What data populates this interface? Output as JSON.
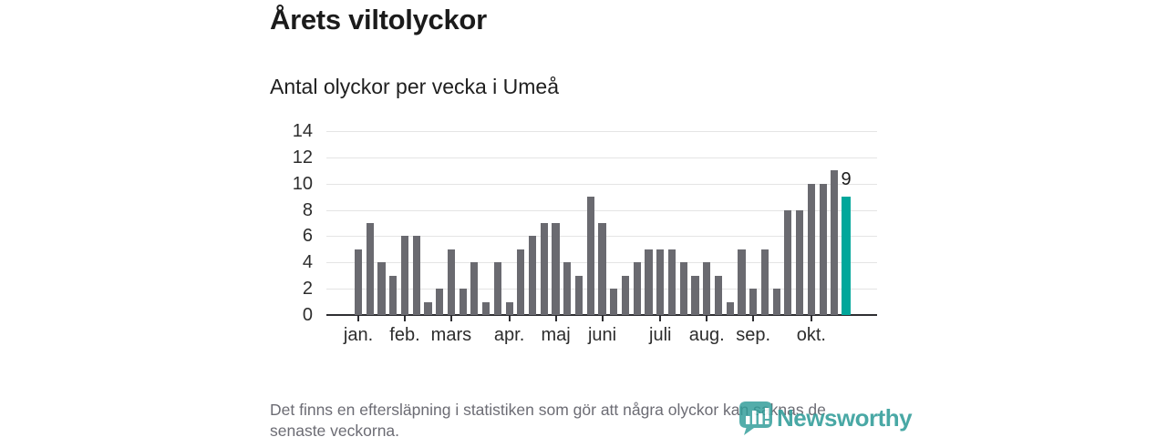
{
  "header": {
    "title": "Årets viltolyckor",
    "subtitle": "Antal olyckor per vecka i Umeå"
  },
  "chart_data": {
    "type": "bar",
    "title": "Årets viltolyckor",
    "subtitle": "Antal olyckor per vecka i Umeå",
    "x_unit": "vecka",
    "weeks": [
      1,
      2,
      3,
      4,
      5,
      6,
      7,
      8,
      9,
      10,
      11,
      12,
      13,
      14,
      15,
      16,
      17,
      18,
      19,
      20,
      21,
      22,
      23,
      24,
      25,
      26,
      27,
      28,
      29,
      30,
      31,
      32,
      33,
      34,
      35,
      36,
      37,
      38,
      39,
      40,
      41,
      42,
      43
    ],
    "values": [
      5,
      7,
      4,
      3,
      6,
      6,
      1,
      2,
      5,
      2,
      4,
      1,
      4,
      1,
      5,
      6,
      7,
      7,
      4,
      3,
      9,
      7,
      2,
      3,
      4,
      5,
      5,
      5,
      4,
      3,
      4,
      3,
      1,
      5,
      2,
      5,
      2,
      8,
      8,
      10,
      10,
      11,
      9
    ],
    "highlight_index": 42,
    "annotation": {
      "text": "9",
      "bar_index": 42
    },
    "month_ticks": [
      {
        "label": "jan.",
        "bar_index": 0
      },
      {
        "label": "feb.",
        "bar_index": 4
      },
      {
        "label": "mars",
        "bar_index": 8
      },
      {
        "label": "apr.",
        "bar_index": 13
      },
      {
        "label": "maj",
        "bar_index": 17
      },
      {
        "label": "juni",
        "bar_index": 21
      },
      {
        "label": "juli",
        "bar_index": 26
      },
      {
        "label": "aug.",
        "bar_index": 30
      },
      {
        "label": "sep.",
        "bar_index": 34
      },
      {
        "label": "okt.",
        "bar_index": 39
      }
    ],
    "ylim": [
      0,
      14
    ],
    "yticks": [
      0,
      2,
      4,
      6,
      8,
      10,
      12,
      14
    ],
    "grid": true,
    "legend": "none",
    "colors": {
      "bar": "#6a6a70",
      "highlight": "#00a79b",
      "grid": "#e4e4e4",
      "axis": "#2e2e32"
    }
  },
  "footer": {
    "note_lines": [
      "Det finns en eftersläpning i statistiken som gör att några olyckor kan saknas de",
      "senaste veckorna."
    ],
    "brand": "Newsworthy"
  }
}
